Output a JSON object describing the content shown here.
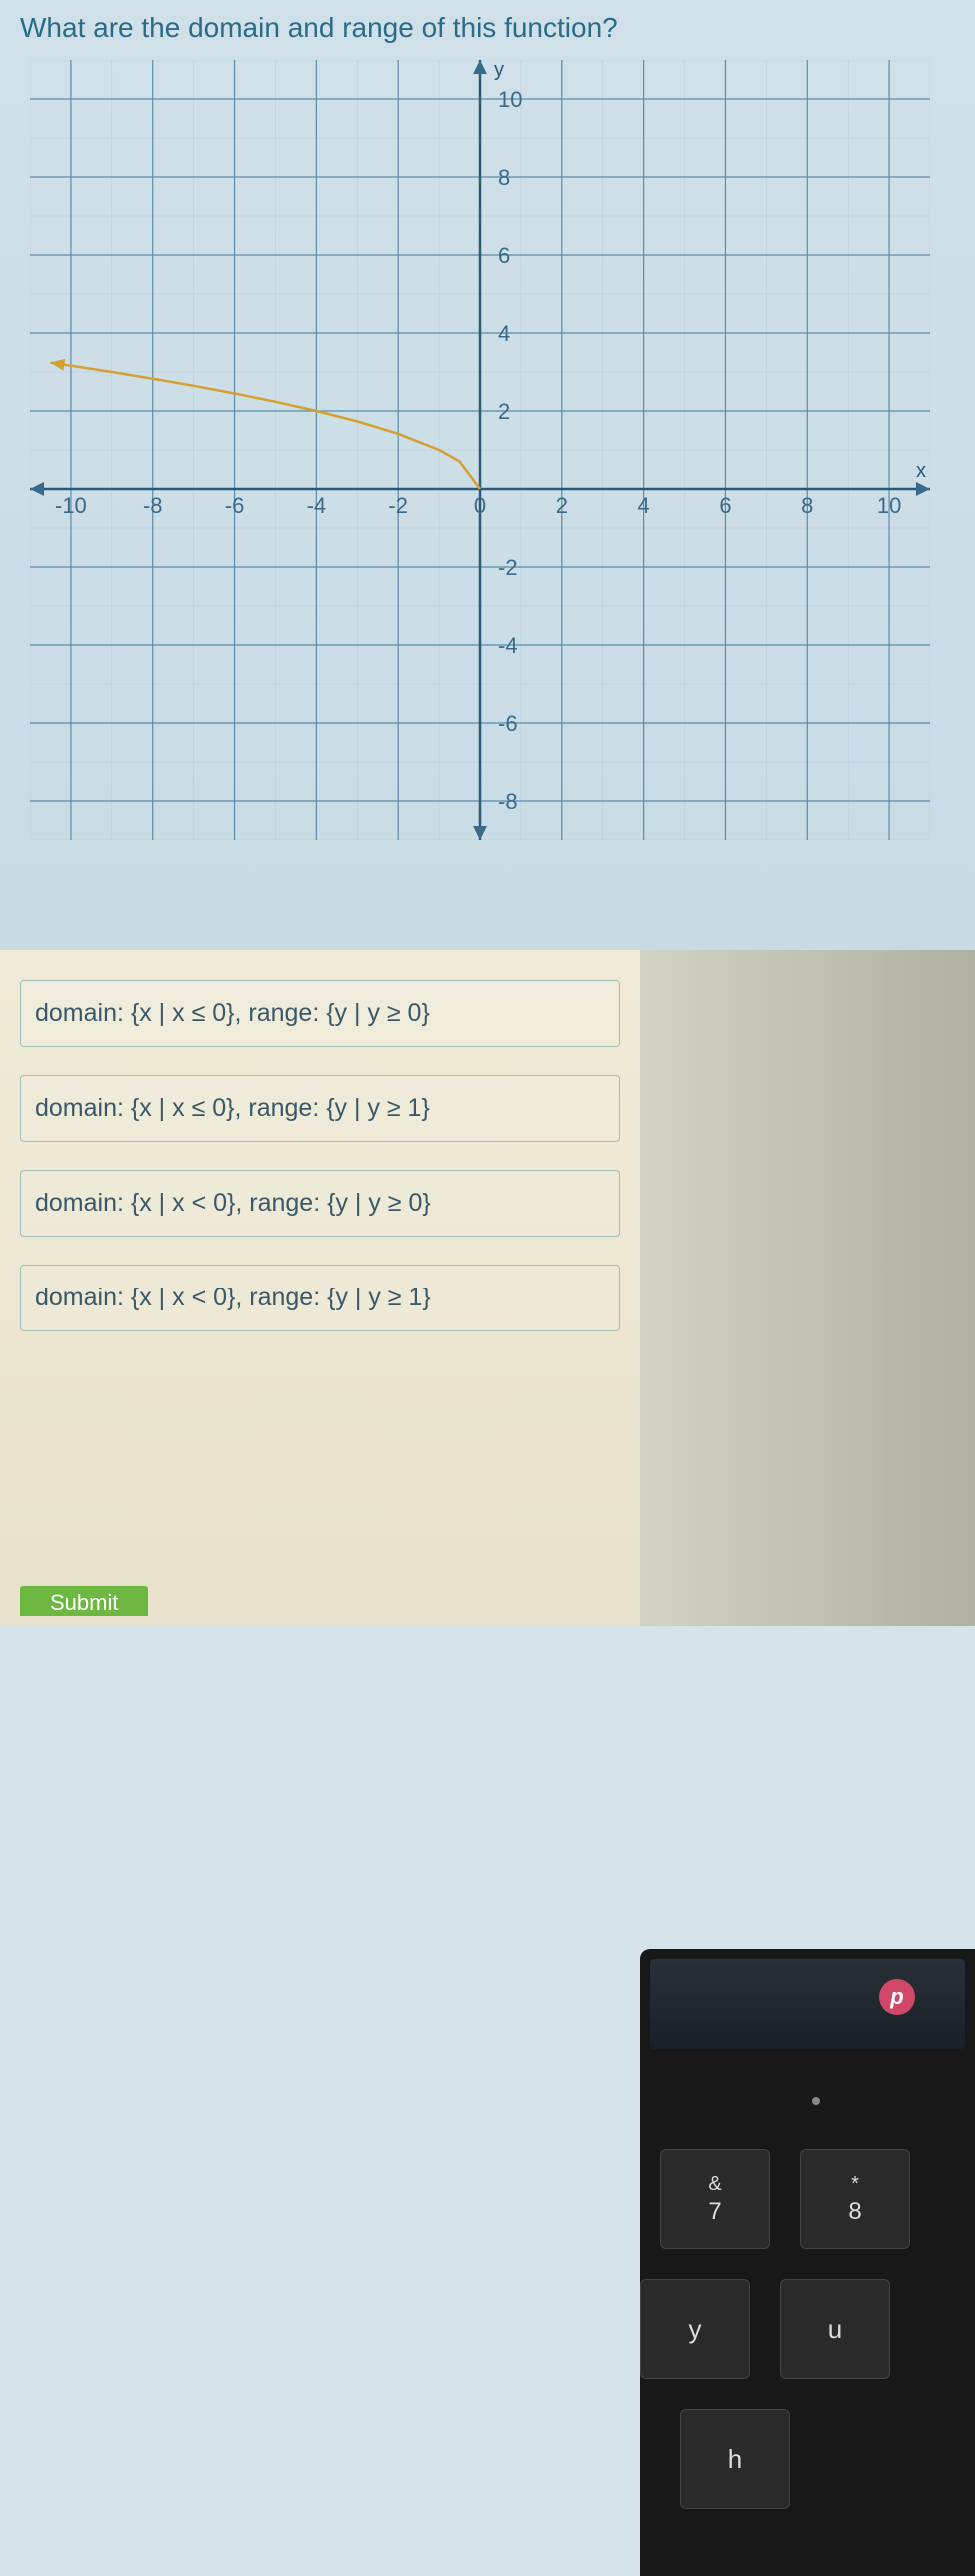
{
  "question": "What are the domain and range of this function?",
  "chart": {
    "type": "line",
    "xlim": [
      -11,
      11
    ],
    "ylim": [
      -9,
      11
    ],
    "major_step": 2,
    "minor_step": 1,
    "x_axis_label": "x",
    "y_axis_label": "y",
    "x_ticks": [
      -10,
      -8,
      -6,
      -4,
      -2,
      0,
      2,
      4,
      6,
      8,
      10
    ],
    "y_ticks": [
      -8,
      -6,
      -4,
      -2,
      2,
      4,
      6,
      8,
      10
    ],
    "grid_major_color": "#5a8ba8",
    "grid_minor_color": "#b8cdd8",
    "axis_color": "#2a5a7a",
    "curve_color": "#d4a030",
    "curve_type": "sqrt_neg_x",
    "curve_points": [
      [
        0,
        0
      ],
      [
        -0.5,
        0.707
      ],
      [
        -1,
        1
      ],
      [
        -2,
        1.414
      ],
      [
        -3,
        1.732
      ],
      [
        -4,
        2
      ],
      [
        -5,
        2.236
      ],
      [
        -6,
        2.449
      ],
      [
        -7,
        2.646
      ],
      [
        -8,
        2.828
      ],
      [
        -9,
        3
      ],
      [
        -10,
        3.162
      ],
      [
        -10.5,
        3.24
      ]
    ],
    "curve_arrow_end": true,
    "background_color": "#d4e4ea",
    "tick_fontsize": 22,
    "axis_label_fontsize": 20
  },
  "options": [
    "domain: {x | x ≤ 0}, range: {y | y ≥ 0}",
    "domain: {x | x ≤ 0}, range: {y | y ≥ 1}",
    "domain: {x | x < 0}, range: {y | y ≥ 0}",
    "domain: {x | x < 0}, range: {y | y ≥ 1}"
  ],
  "submit_label": "Submit",
  "badge_letter": "p",
  "keyboard": {
    "k7": {
      "top": "&",
      "bot": "7"
    },
    "k8": {
      "top": "*",
      "bot": "8"
    },
    "ky": "y",
    "ku": "u",
    "kh": "h"
  }
}
